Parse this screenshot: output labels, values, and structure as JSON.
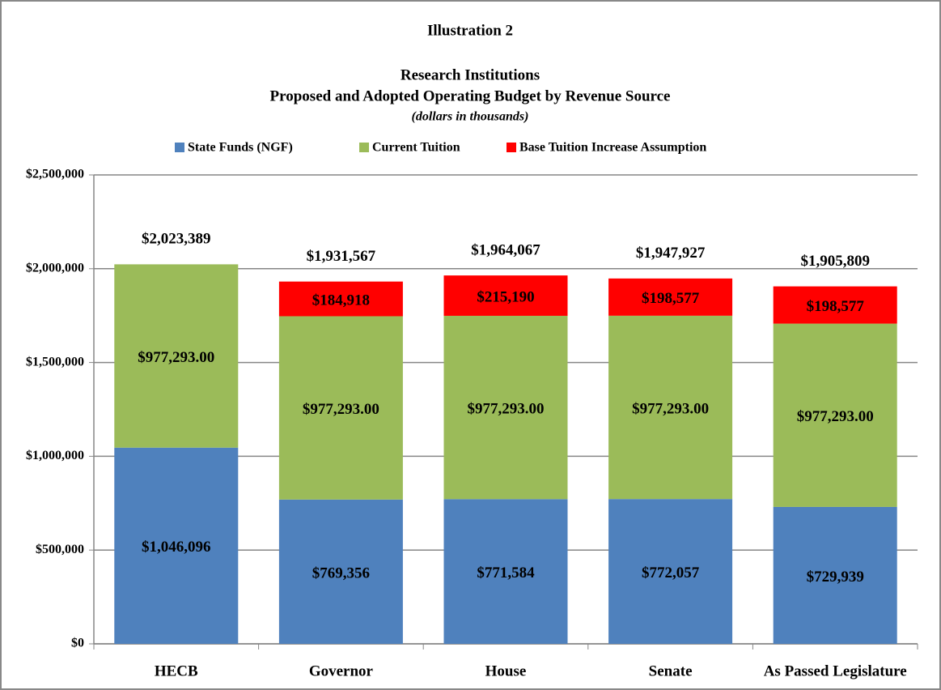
{
  "chart_data": {
    "type": "stacked-bar",
    "title": "Illustration 2",
    "subtitle": "Research Institutions",
    "subtitle2": "Proposed and Adopted Operating Budget by Revenue Source",
    "note": "(dollars in thousands)",
    "categories": [
      "HECB",
      "Governor",
      "House",
      "Senate",
      "As Passed Legislature"
    ],
    "series": [
      {
        "name": "State Funds (NGF)",
        "color": "#4f81bd",
        "values": [
          1046096,
          769356,
          771584,
          772057,
          729939
        ],
        "value_labels": [
          "$1,046,096",
          "$769,356",
          "$771,584",
          "$772,057",
          "$729,939"
        ]
      },
      {
        "name": "Current Tuition",
        "color": "#9bbb59",
        "values": [
          977293,
          977293,
          977293,
          977293,
          977293
        ],
        "value_labels": [
          "$977,293.00",
          "$977,293.00",
          "$977,293.00",
          "$977,293.00",
          "$977,293.00"
        ]
      },
      {
        "name": "Base Tuition Increase Assumption",
        "color": "#ff0000",
        "values": [
          null,
          184918,
          215190,
          198577,
          198577
        ],
        "value_labels": [
          null,
          "$184,918",
          "$215,190",
          "$198,577",
          "$198,577"
        ]
      }
    ],
    "totals": {
      "values": [
        2023389,
        1931567,
        1964067,
        1947927,
        1905809
      ],
      "value_labels": [
        "$2,023,389",
        "$1,931,567",
        "$1,964,067",
        "$1,947,927",
        "$1,905,809"
      ]
    },
    "ylim": [
      0,
      2500000
    ],
    "yticks": [
      {
        "value": 0,
        "label": "$0"
      },
      {
        "value": 500000,
        "label": "$500,000"
      },
      {
        "value": 1000000,
        "label": "$1,000,000"
      },
      {
        "value": 1500000,
        "label": "$1,500,000"
      },
      {
        "value": 2000000,
        "label": "$2,000,000"
      },
      {
        "value": 2500000,
        "label": "$2,500,000"
      }
    ],
    "grid": true
  }
}
